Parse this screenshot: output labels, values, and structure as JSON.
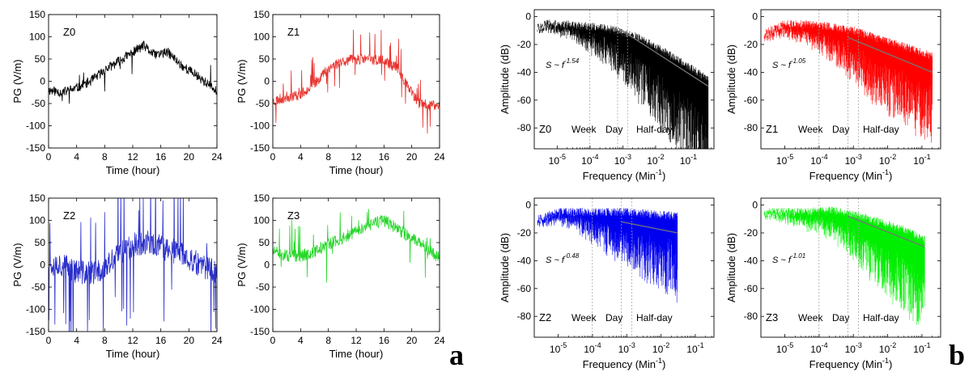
{
  "panel_letters": {
    "a": "a",
    "b": "b"
  },
  "chart_data": [
    {
      "type": "line",
      "panel": "a",
      "label": "Z0",
      "color": "#000000",
      "xlabel": "Time (hour)",
      "ylabel": "PG (V/m)",
      "xlim": [
        0,
        24
      ],
      "ylim": [
        -150,
        150
      ],
      "xticks": [
        "0",
        "4",
        "8",
        "12",
        "16",
        "20",
        "24"
      ],
      "yticks": [
        "-150",
        "-100",
        "-50",
        "0",
        "50",
        "100",
        "150"
      ],
      "anchors": [
        [
          0,
          -20
        ],
        [
          2,
          -25
        ],
        [
          4,
          -15
        ],
        [
          6,
          0
        ],
        [
          8,
          25
        ],
        [
          10,
          45
        ],
        [
          12,
          65
        ],
        [
          13.5,
          80
        ],
        [
          15,
          60
        ],
        [
          17,
          65
        ],
        [
          19,
          35
        ],
        [
          21,
          15
        ],
        [
          23,
          -10
        ],
        [
          24,
          -25
        ]
      ],
      "noise": 11,
      "spike_rate": 0.03,
      "spike_amp": 35,
      "seed": 11
    },
    {
      "type": "line",
      "panel": "a",
      "label": "Z1",
      "color": "#e8322d",
      "xlabel": "Time (hour)",
      "ylabel": "PG (V/m)",
      "xlim": [
        0,
        24
      ],
      "ylim": [
        -150,
        150
      ],
      "xticks": [
        "0",
        "4",
        "8",
        "12",
        "16",
        "20",
        "24"
      ],
      "yticks": [
        "-150",
        "-100",
        "-50",
        "0",
        "50",
        "100",
        "150"
      ],
      "anchors": [
        [
          0,
          -45
        ],
        [
          2,
          -35
        ],
        [
          4,
          -30
        ],
        [
          6,
          -5
        ],
        [
          8,
          30
        ],
        [
          10,
          45
        ],
        [
          12,
          50
        ],
        [
          14,
          50
        ],
        [
          16,
          45
        ],
        [
          18,
          30
        ],
        [
          19.5,
          -15
        ],
        [
          21,
          -50
        ],
        [
          23,
          -55
        ],
        [
          24,
          -55
        ]
      ],
      "noise": 12,
      "spike_rate": 0.05,
      "spike_amp": 45,
      "seed": 23
    },
    {
      "type": "line",
      "panel": "a",
      "label": "Z2",
      "color": "#2a2fc9",
      "xlabel": "Time (hour)",
      "ylabel": "PG (V/m)",
      "xlim": [
        0,
        24
      ],
      "ylim": [
        -150,
        150
      ],
      "xticks": [
        "0",
        "4",
        "8",
        "12",
        "16",
        "20",
        "24"
      ],
      "yticks": [
        "-150",
        "-100",
        "-50",
        "0",
        "50",
        "100",
        "150"
      ],
      "anchors": [
        [
          0,
          5
        ],
        [
          2,
          0
        ],
        [
          4,
          -15
        ],
        [
          6,
          -20
        ],
        [
          8,
          -10
        ],
        [
          10,
          25
        ],
        [
          12,
          45
        ],
        [
          14,
          50
        ],
        [
          16,
          40
        ],
        [
          18,
          30
        ],
        [
          20,
          15
        ],
        [
          22,
          -5
        ],
        [
          24,
          -15
        ]
      ],
      "noise": 28,
      "spike_rate": 0.08,
      "spike_amp": 140,
      "seed": 37
    },
    {
      "type": "line",
      "panel": "a",
      "label": "Z3",
      "color": "#27d62a",
      "xlabel": "Time (hour)",
      "ylabel": "PG (V/m)",
      "xlim": [
        0,
        24
      ],
      "ylim": [
        -150,
        150
      ],
      "xticks": [
        "0",
        "4",
        "8",
        "12",
        "16",
        "20",
        "24"
      ],
      "yticks": [
        "-150",
        "-100",
        "-50",
        "0",
        "50",
        "100",
        "150"
      ],
      "anchors": [
        [
          0,
          30
        ],
        [
          2,
          20
        ],
        [
          4,
          20
        ],
        [
          6,
          30
        ],
        [
          8,
          45
        ],
        [
          10,
          60
        ],
        [
          12,
          75
        ],
        [
          14,
          90
        ],
        [
          16,
          100
        ],
        [
          18,
          80
        ],
        [
          20,
          60
        ],
        [
          22,
          40
        ],
        [
          24,
          15
        ]
      ],
      "noise": 14,
      "spike_rate": 0.05,
      "spike_amp": 50,
      "seed": 51
    },
    {
      "type": "line",
      "panel": "b",
      "label": "Z0",
      "color": "#000000",
      "xlabel": "Frequency (Min",
      "xlabel_sup": "-1",
      "xlabel_end": ")",
      "ylabel": "Amplitude (dB)",
      "xscale": "log",
      "xlim": [
        2e-06,
        0.6
      ],
      "ylim": [
        -95,
        5
      ],
      "xticks": [
        {
          "base": "10",
          "exp": "-5"
        },
        {
          "base": "10",
          "exp": "-4"
        },
        {
          "base": "10",
          "exp": "-3"
        },
        {
          "base": "10",
          "exp": "-2"
        },
        {
          "base": "10",
          "exp": "-1"
        }
      ],
      "yticks": [
        "-80",
        "-60",
        "-40",
        "-20",
        "0"
      ],
      "fmin": 2.5e-06,
      "fmax": 0.4,
      "slope_text": "S ~ f",
      "slope_exp": "-1.54",
      "bands": [
        "Week",
        "Day",
        "Half-day"
      ],
      "band_lines": [
        9.92e-05,
        0.000694,
        0.00139
      ],
      "upper": [
        [
          2.5e-06,
          -8
        ],
        [
          5e-06,
          -5
        ],
        [
          3e-05,
          -6
        ],
        [
          0.0003,
          -8
        ],
        [
          0.003,
          -15
        ],
        [
          0.03,
          -28
        ],
        [
          0.4,
          -45
        ]
      ],
      "lower_width": [
        [
          2.5e-06,
          2
        ],
        [
          3e-05,
          8
        ],
        [
          0.0003,
          22
        ],
        [
          0.003,
          38
        ],
        [
          0.03,
          55
        ],
        [
          0.4,
          70
        ]
      ],
      "fit": [
        [
          0.0007,
          -8
        ],
        [
          0.4,
          -50
        ]
      ],
      "seed": 101
    },
    {
      "type": "line",
      "panel": "b",
      "label": "Z1",
      "color": "#ff0000",
      "xlabel": "Frequency (Min",
      "xlabel_sup": "-1",
      "xlabel_end": ")",
      "ylabel": "Amplitude (dB)",
      "xscale": "log",
      "xlim": [
        2e-06,
        0.35
      ],
      "ylim": [
        -95,
        5
      ],
      "xticks": [
        {
          "base": "10",
          "exp": "-5"
        },
        {
          "base": "10",
          "exp": "-4"
        },
        {
          "base": "10",
          "exp": "-3"
        },
        {
          "base": "10",
          "exp": "-2"
        },
        {
          "base": "10",
          "exp": "-1"
        }
      ],
      "yticks": [
        "-80",
        "-60",
        "-40",
        "-20",
        "0"
      ],
      "fmin": 2.5e-06,
      "fmax": 0.2,
      "slope_text": "S ~ f",
      "slope_exp": "-1.05",
      "bands": [
        "Week",
        "Day",
        "Half-day"
      ],
      "band_lines": [
        9.92e-05,
        0.000694,
        0.00139
      ],
      "upper": [
        [
          2.5e-06,
          -12
        ],
        [
          1e-05,
          -5
        ],
        [
          0.0001,
          -6
        ],
        [
          0.001,
          -10
        ],
        [
          0.01,
          -18
        ],
        [
          0.2,
          -28
        ]
      ],
      "lower_width": [
        [
          2.5e-06,
          3
        ],
        [
          3e-05,
          10
        ],
        [
          0.0003,
          22
        ],
        [
          0.003,
          40
        ],
        [
          0.03,
          48
        ],
        [
          0.2,
          52
        ]
      ],
      "fit": [
        [
          0.0007,
          -15
        ],
        [
          0.2,
          -40
        ]
      ],
      "seed": 202
    },
    {
      "type": "line",
      "panel": "b",
      "label": "Z2",
      "color": "#0000ee",
      "xlabel": "Frequency (Min",
      "xlabel_sup": "-1",
      "xlabel_end": ")",
      "ylabel": "Amplitude (dB)",
      "xscale": "log",
      "xlim": [
        2e-06,
        0.35
      ],
      "ylim": [
        -95,
        5
      ],
      "xticks": [
        {
          "base": "10",
          "exp": "-5"
        },
        {
          "base": "10",
          "exp": "-4"
        },
        {
          "base": "10",
          "exp": "-3"
        },
        {
          "base": "10",
          "exp": "-2"
        },
        {
          "base": "10",
          "exp": "-1"
        }
      ],
      "yticks": [
        "-80",
        "-60",
        "-40",
        "-20",
        "0"
      ],
      "fmin": 2.5e-06,
      "fmax": 0.03,
      "slope_text": "S ~ f",
      "slope_exp": "-0.48",
      "bands": [
        "Week",
        "Day",
        "Half-day"
      ],
      "band_lines": [
        9.92e-05,
        0.000694,
        0.00139
      ],
      "upper": [
        [
          2.5e-06,
          -10
        ],
        [
          1e-05,
          -5
        ],
        [
          0.0001,
          -5
        ],
        [
          0.001,
          -5
        ],
        [
          0.03,
          -8
        ]
      ],
      "lower_width": [
        [
          2.5e-06,
          3
        ],
        [
          3e-05,
          10
        ],
        [
          0.0003,
          25
        ],
        [
          0.003,
          40
        ],
        [
          0.03,
          50
        ]
      ],
      "fit": [
        [
          0.0007,
          -12
        ],
        [
          0.03,
          -20
        ]
      ],
      "seed": 303
    },
    {
      "type": "line",
      "panel": "b",
      "label": "Z3",
      "color": "#00ee00",
      "xlabel": "Frequency (Min",
      "xlabel_sup": "-1",
      "xlabel_end": ")",
      "ylabel": "Amplitude (dB)",
      "xscale": "log",
      "xlim": [
        2e-06,
        0.35
      ],
      "ylim": [
        -95,
        5
      ],
      "xticks": [
        {
          "base": "10",
          "exp": "-5"
        },
        {
          "base": "10",
          "exp": "-4"
        },
        {
          "base": "10",
          "exp": "-3"
        },
        {
          "base": "10",
          "exp": "-2"
        },
        {
          "base": "10",
          "exp": "-1"
        }
      ],
      "yticks": [
        "-80",
        "-60",
        "-40",
        "-20",
        "0"
      ],
      "fmin": 2.5e-06,
      "fmax": 0.12,
      "slope_text": "S ~ f",
      "slope_exp": "-1.01",
      "bands": [
        "Week",
        "Day",
        "Half-day"
      ],
      "band_lines": [
        9.92e-05,
        0.000694,
        0.00139
      ],
      "upper": [
        [
          2.5e-06,
          -5
        ],
        [
          3e-05,
          -5
        ],
        [
          0.0003,
          -4
        ],
        [
          0.003,
          -10
        ],
        [
          0.03,
          -18
        ],
        [
          0.12,
          -25
        ]
      ],
      "lower_width": [
        [
          2.5e-06,
          2
        ],
        [
          3e-05,
          8
        ],
        [
          0.0003,
          18
        ],
        [
          0.003,
          35
        ],
        [
          0.03,
          50
        ],
        [
          0.12,
          62
        ]
      ],
      "fit": [
        [
          0.0007,
          -8
        ],
        [
          0.12,
          -30
        ]
      ],
      "seed": 404
    }
  ]
}
